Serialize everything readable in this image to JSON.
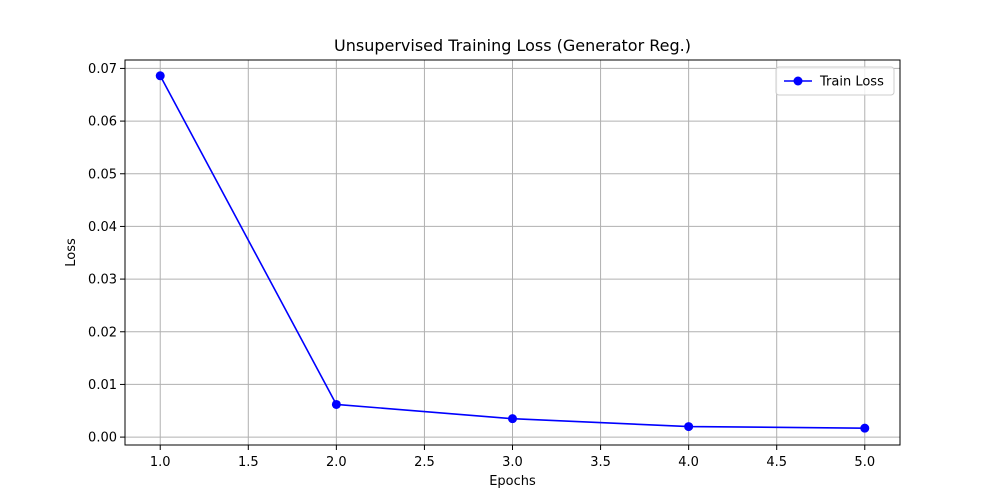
{
  "chart_data": {
    "type": "line",
    "title": "Unsupervised Training Loss (Generator Reg.)",
    "xlabel": "Epochs",
    "ylabel": "Loss",
    "xlim": [
      0.8,
      5.2
    ],
    "ylim": [
      -0.0015,
      0.0716
    ],
    "x_ticks": [
      1.0,
      1.5,
      2.0,
      2.5,
      3.0,
      3.5,
      4.0,
      4.5,
      5.0
    ],
    "x_tick_labels": [
      "1.0",
      "1.5",
      "2.0",
      "2.5",
      "3.0",
      "3.5",
      "4.0",
      "4.5",
      "5.0"
    ],
    "y_ticks": [
      0.0,
      0.01,
      0.02,
      0.03,
      0.04,
      0.05,
      0.06,
      0.07
    ],
    "y_tick_labels": [
      "0.00",
      "0.01",
      "0.02",
      "0.03",
      "0.04",
      "0.05",
      "0.06",
      "0.07"
    ],
    "grid": true,
    "legend_position": "top-right",
    "series": [
      {
        "name": "Train Loss",
        "color": "#0000ff",
        "marker": "circle",
        "x": [
          1,
          2,
          3,
          4,
          5
        ],
        "y": [
          0.0686,
          0.0062,
          0.0035,
          0.002,
          0.0017
        ]
      }
    ]
  }
}
